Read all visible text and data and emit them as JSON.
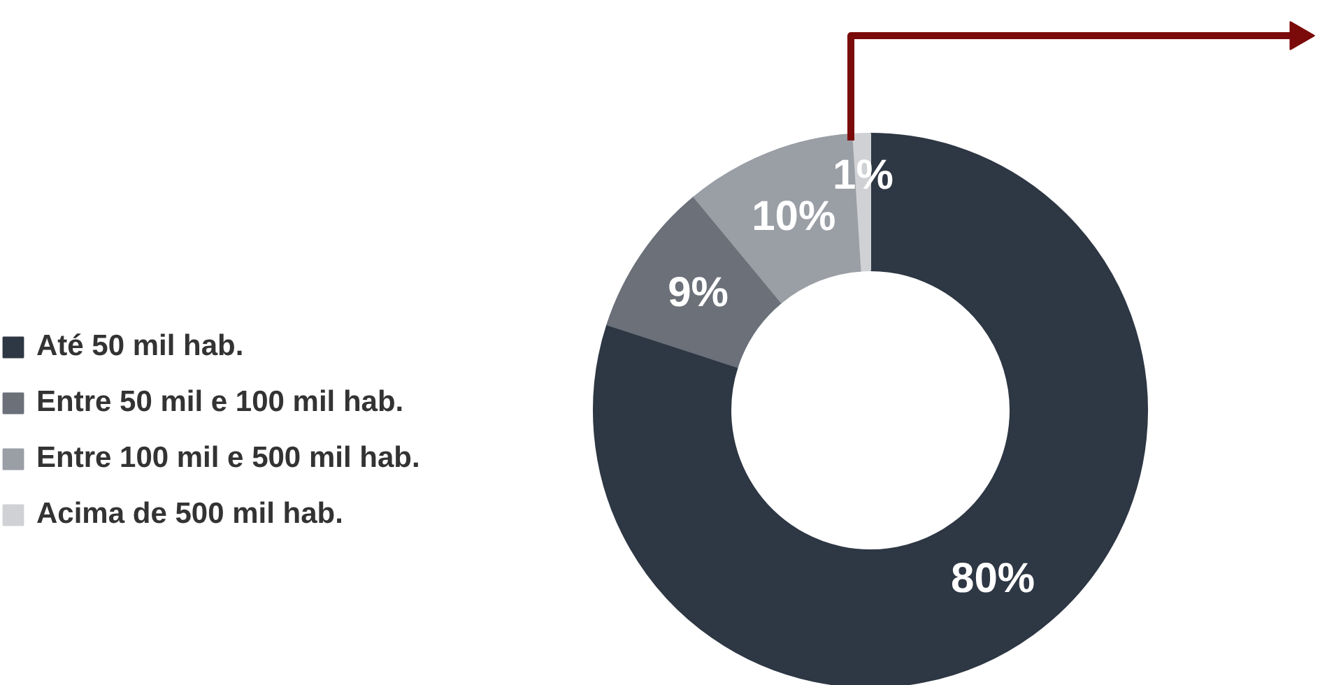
{
  "chart_data": {
    "type": "donut",
    "categories": [
      "Até 50 mil hab.",
      "Entre 50 mil e 100 mil hab.",
      "Entre 100 mil e 500 mil hab.",
      "Acima de 500 mil hab."
    ],
    "values": [
      80,
      9,
      10,
      1
    ],
    "colors": [
      "#2e3744",
      "#6b7079",
      "#9a9ea5",
      "#d0d1d4"
    ],
    "value_labels": [
      "80%",
      "9%",
      "10%",
      "1%"
    ],
    "legend": "left"
  }
}
